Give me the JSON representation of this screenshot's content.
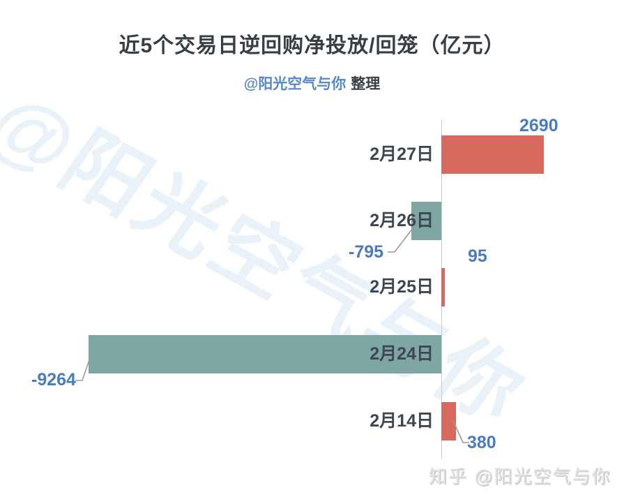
{
  "title": "近5个交易日逆回购净投放/回笼（亿元）",
  "subtitle": {
    "handle": "@阳光空气与你",
    "suffix": "整理"
  },
  "watermark": "@阳光空气与你",
  "credit": "知乎 @阳光空气与你",
  "colors": {
    "positive_bar": "#d8695e",
    "negative_bar": "#7ea6a3",
    "value_label": "#4a7bbe",
    "subtitle_handle": "#5688c7",
    "title_text": "#383e46",
    "category_text": "#3d4651",
    "axis_line": "#c9cccf",
    "watermark": "#e9f1f9",
    "credit_text": "#dcdcdc"
  },
  "chart_data": {
    "type": "bar",
    "orientation": "horizontal",
    "title": "近5个交易日逆回购净投放/回笼（亿元）",
    "unit": "亿元",
    "categories": [
      "2月27日",
      "2月26日",
      "2月25日",
      "2月24日",
      "2月14日"
    ],
    "values": [
      2690,
      -795,
      95,
      -9264,
      380
    ],
    "value_labels": [
      "2690",
      "-795",
      "95",
      "-9264",
      "380"
    ],
    "positive_color": "#d8695e",
    "negative_color": "#7ea6a3",
    "axis": {
      "zero_line": true,
      "gridlines": false,
      "value_axis_labels": false
    },
    "legend": "none",
    "xlim": [
      -9264,
      2690
    ]
  }
}
